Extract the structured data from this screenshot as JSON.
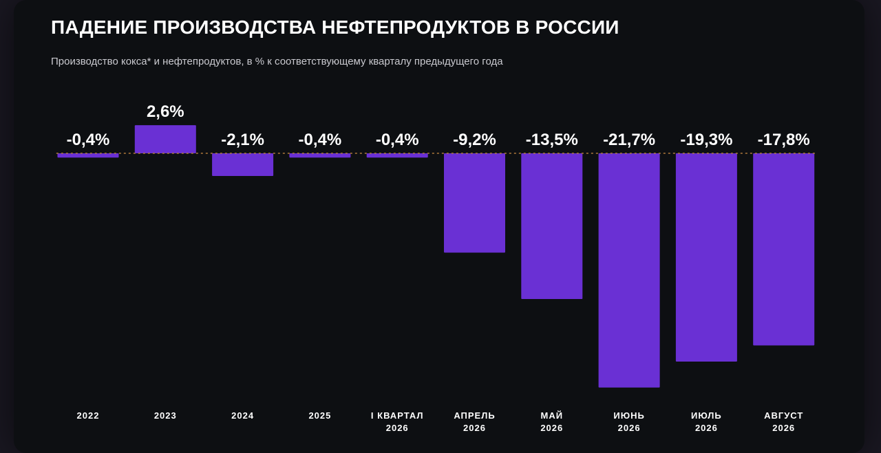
{
  "chart_data": {
    "type": "bar",
    "title": "ПАДЕНИЕ ПРОИЗВОДСТВА НЕФТЕПРОДУКТОВ В РОССИИ",
    "subtitle": "Производство кокса* и нефтепродуктов, в % к соответствующему кварталу предыдущего года",
    "categories": [
      [
        "2022"
      ],
      [
        "2023"
      ],
      [
        "2024"
      ],
      [
        "2025"
      ],
      [
        "I КВАРТАЛ",
        "2026"
      ],
      [
        "АПРЕЛЬ",
        "2026"
      ],
      [
        "МАЙ",
        "2026"
      ],
      [
        "ИЮНЬ",
        "2026"
      ],
      [
        "ИЮЛЬ",
        "2026"
      ],
      [
        "АВГУСТ",
        "2026"
      ]
    ],
    "values": [
      -0.4,
      2.6,
      -2.1,
      -0.4,
      -0.4,
      -9.2,
      -13.5,
      -21.7,
      -19.3,
      -17.8
    ],
    "value_labels": [
      "-0,4%",
      "2,6%",
      "-2,1%",
      "-0,4%",
      "-0,4%",
      "-9,2%",
      "-13,5%",
      "-21,7%",
      "-19,3%",
      "-17,8%"
    ],
    "bar_color": "#6a30d4",
    "baseline_color": "#b07a3a",
    "xlabel": "",
    "ylabel": "",
    "grid": false
  }
}
